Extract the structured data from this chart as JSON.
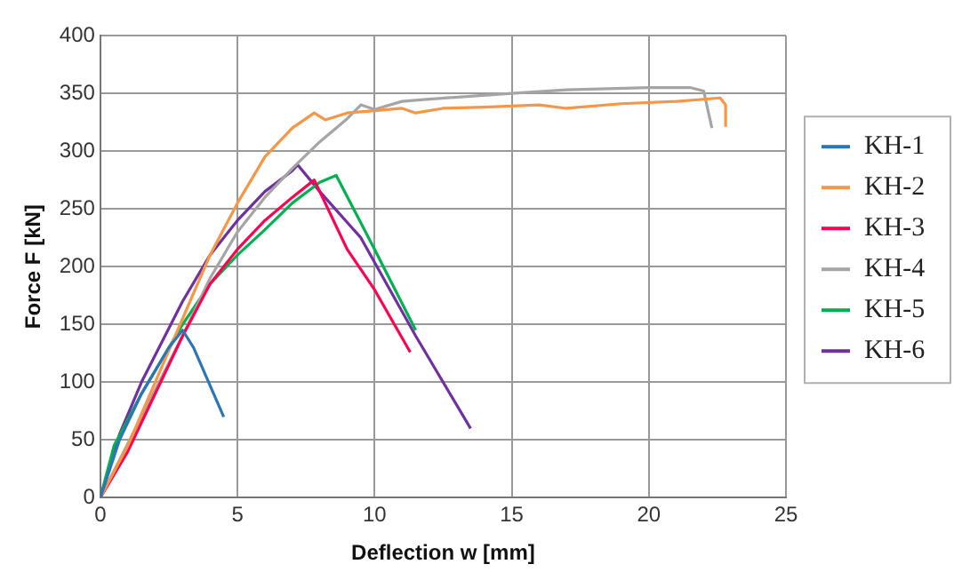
{
  "chart_data": {
    "type": "line",
    "xlabel": "Deflection w [mm]",
    "ylabel": "Force F [kN]",
    "xlim": [
      0,
      25
    ],
    "xticks": [
      0,
      5,
      10,
      15,
      20,
      25
    ],
    "ylim": [
      0,
      400
    ],
    "yticks": [
      0,
      50,
      100,
      150,
      200,
      250,
      300,
      350,
      400
    ],
    "grid": true,
    "legend": "right",
    "marker": "none",
    "line_style": "solid",
    "series": [
      {
        "name": "KH-1",
        "color": "#2e75b6",
        "x": [
          0,
          0.7,
          1.5,
          2.5,
          3,
          3.4,
          4.5
        ],
        "values": [
          0,
          50,
          90,
          130,
          145,
          130,
          70
        ]
      },
      {
        "name": "KH-2",
        "color": "#f79646",
        "x": [
          0,
          1,
          2,
          3,
          4,
          5,
          6,
          7,
          7.8,
          8.2,
          9,
          10,
          11,
          11.5,
          12.5,
          14,
          16,
          17,
          19,
          21,
          22.6,
          22.8,
          22.8
        ],
        "values": [
          0,
          45,
          100,
          155,
          210,
          255,
          295,
          320,
          333,
          327,
          333,
          335,
          337,
          333,
          337,
          338,
          340,
          337,
          341,
          343,
          346,
          340,
          322
        ]
      },
      {
        "name": "KH-3",
        "color": "#ff0050",
        "x": [
          0,
          1,
          2,
          3,
          4,
          5,
          6,
          7,
          7.8,
          8,
          8.5,
          9,
          10,
          11.3
        ],
        "values": [
          0,
          40,
          90,
          140,
          185,
          215,
          240,
          260,
          275,
          265,
          240,
          215,
          180,
          126
        ]
      },
      {
        "name": "KH-4",
        "color": "#a5a5a5",
        "x": [
          0,
          3,
          4,
          5,
          6,
          7,
          8,
          9,
          9.5,
          10,
          11,
          12,
          15,
          17,
          20,
          21.5,
          22,
          22.3
        ],
        "values": [
          0,
          140,
          190,
          230,
          260,
          285,
          308,
          328,
          340,
          336,
          343,
          345,
          350,
          353,
          355,
          355,
          352,
          320
        ]
      },
      {
        "name": "KH-5",
        "color": "#00b050",
        "x": [
          0,
          0.5,
          1.5,
          3,
          4,
          5,
          6,
          7,
          8,
          8.6,
          10,
          11.5
        ],
        "values": [
          0,
          45,
          90,
          150,
          185,
          210,
          232,
          255,
          273,
          279,
          215,
          145
        ]
      },
      {
        "name": "KH-6",
        "color": "#7030a0",
        "x": [
          0,
          0.7,
          1.5,
          3,
          4,
          5,
          6,
          7,
          7.2,
          8,
          9.5,
          11.5,
          13.5
        ],
        "values": [
          0,
          55,
          100,
          170,
          210,
          240,
          265,
          283,
          288,
          265,
          225,
          140,
          60
        ]
      }
    ]
  }
}
